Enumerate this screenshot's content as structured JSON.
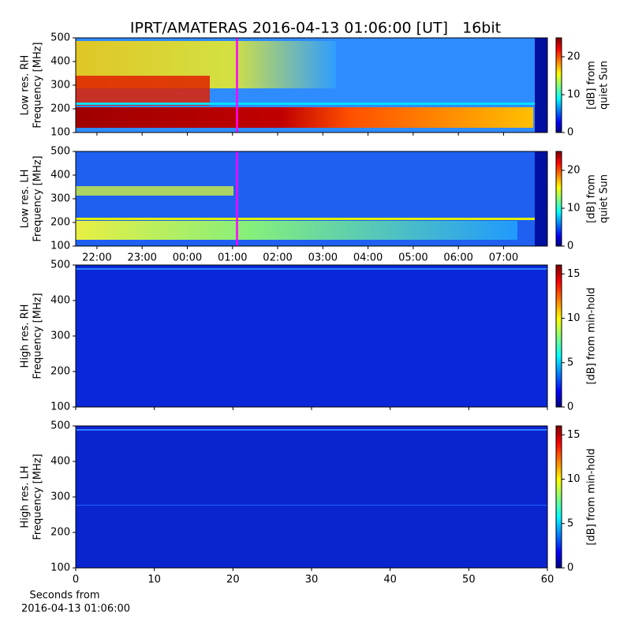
{
  "title": "IPRT/AMATERAS 2016-04-13 01:06:00 [UT]   16bit",
  "chart_data": [
    {
      "type": "spectrogram",
      "cmap": "jet",
      "ylabel": [
        "Low res. RH",
        "Frequency [MHz]"
      ],
      "ylim": [
        100,
        500
      ],
      "yticks": [
        100,
        200,
        300,
        400,
        500
      ],
      "xlim": [
        21.53,
        31.97
      ],
      "xticks": [
        22,
        23,
        24,
        25,
        26,
        27,
        28,
        29,
        30,
        31
      ],
      "x_tick_labels": false,
      "cursor": {
        "x": 25.1,
        "color": "#ff00ff"
      },
      "colorbar": {
        "label": [
          "[dB] from",
          "quiet Sun"
        ],
        "lim": [
          0,
          25
        ],
        "ticks": [
          0,
          10,
          20
        ]
      }
    },
    {
      "type": "spectrogram",
      "cmap": "jet",
      "ylabel": [
        "Low res. LH",
        "Frequency [MHz]"
      ],
      "ylim": [
        100,
        500
      ],
      "yticks": [
        100,
        200,
        300,
        400,
        500
      ],
      "xlim": [
        21.53,
        31.97
      ],
      "xticks": [
        {
          "value": 22,
          "label": "22:00"
        },
        {
          "value": 23,
          "label": "23:00"
        },
        {
          "value": 24,
          "label": "00:00"
        },
        {
          "value": 25,
          "label": "01:00"
        },
        {
          "value": 26,
          "label": "02:00"
        },
        {
          "value": 27,
          "label": "03:00"
        },
        {
          "value": 28,
          "label": "04:00"
        },
        {
          "value": 29,
          "label": "05:00"
        },
        {
          "value": 30,
          "label": "06:00"
        },
        {
          "value": 31,
          "label": "07:00"
        }
      ],
      "x_tick_labels": true,
      "cursor": {
        "x": 25.1,
        "color": "#ff00ff"
      },
      "colorbar": {
        "label": [
          "[dB] from",
          "quiet Sun"
        ],
        "lim": [
          0,
          25
        ],
        "ticks": [
          0,
          10,
          20
        ]
      }
    },
    {
      "type": "spectrogram",
      "cmap": "jet",
      "ylabel": [
        "High res. RH",
        "Frequency [MHz]"
      ],
      "ylim": [
        100,
        500
      ],
      "yticks": [
        100,
        200,
        300,
        400,
        500
      ],
      "xlim": [
        0,
        60
      ],
      "xticks": [
        0,
        10,
        20,
        30,
        40,
        50,
        60
      ],
      "x_tick_labels": false,
      "colorbar": {
        "label": [
          "[dB] from min-hold"
        ],
        "lim": [
          0,
          16
        ],
        "ticks": [
          0,
          5,
          10,
          15
        ]
      }
    },
    {
      "type": "spectrogram",
      "cmap": "jet",
      "ylabel": [
        "High res. LH",
        "Frequency [MHz]"
      ],
      "ylim": [
        100,
        500
      ],
      "yticks": [
        100,
        200,
        300,
        400,
        500
      ],
      "xlim": [
        0,
        60
      ],
      "xticks": [
        0,
        10,
        20,
        30,
        40,
        50,
        60
      ],
      "x_tick_labels": true,
      "xlabel": [
        "Seconds from",
        "2016-04-13 01:06:00"
      ],
      "colorbar": {
        "label": [
          "[dB] from min-hold"
        ],
        "lim": [
          0,
          16
        ],
        "ticks": [
          0,
          5,
          10,
          15
        ]
      }
    }
  ]
}
